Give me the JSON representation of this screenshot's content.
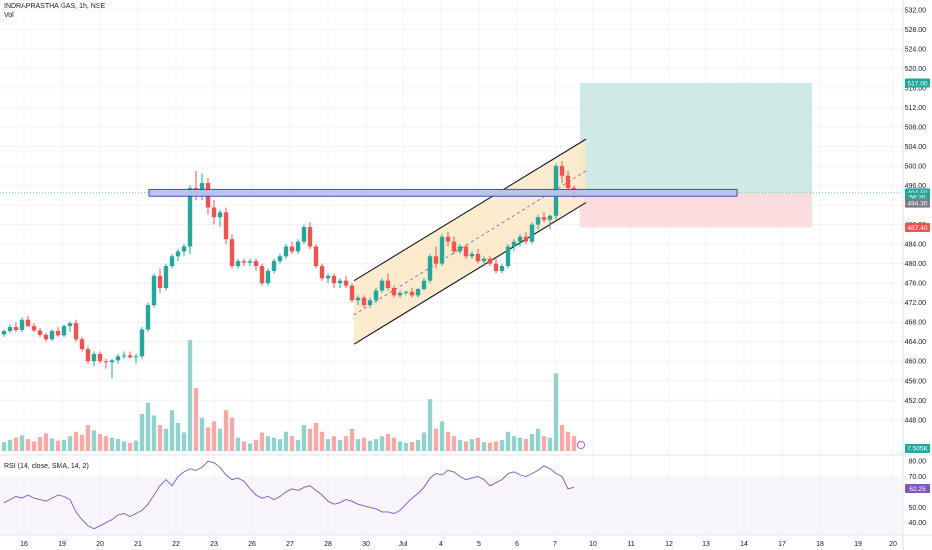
{
  "header": {
    "symbol": "INDRAPRASTHA GAS, 1h, NSE",
    "volume_label": "Vol"
  },
  "rsi_header": {
    "label": "RSI (14, close, SMA, 14, 2)"
  },
  "colors": {
    "up": "#26a69a",
    "down": "#ef5350",
    "vol_up": "#92d2cc",
    "vol_down": "#f7a9a7",
    "rsi_line": "#7e57c2",
    "channel_fill": "#fde8c6",
    "zone_fill": "#b7c4ee",
    "zone_stroke": "#3949ab",
    "target_fill": "#cdeae6",
    "stop_fill": "#fcdcdc",
    "grid": "#f0f3fa"
  },
  "chart_data": {
    "type": "candlestick",
    "y_axis": {
      "range": [
        441,
        534
      ],
      "ticks": [
        532,
        528,
        524,
        520,
        516,
        512,
        508,
        504,
        500,
        496,
        492,
        488,
        484,
        480,
        476,
        472,
        468,
        464,
        460,
        456,
        452,
        448
      ]
    },
    "x_axis": {
      "ticks": [
        "16",
        "19",
        "20",
        "21",
        "22",
        "23",
        "26",
        "27",
        "28",
        "30",
        "Jul",
        "4",
        "5",
        "6",
        "7",
        "10",
        "11",
        "12",
        "13",
        "14",
        "17",
        "18",
        "19",
        "20"
      ]
    },
    "price_tags": [
      {
        "label": "517.00",
        "value": 517.0,
        "color": "#26a69a"
      },
      {
        "label": "494.50",
        "value": 494.5,
        "color": "#26a69a"
      },
      {
        "label": "56:20",
        "value": 493.6,
        "color": "#26a69a"
      },
      {
        "label": "494.30",
        "value": 492.4,
        "color": "#787b86"
      },
      {
        "label": "487.40",
        "value": 487.4,
        "color": "#ef5350"
      }
    ],
    "volume_tag": {
      "label": "7.505K",
      "color": "#26a69a"
    },
    "rsi": {
      "range": [
        32,
        84
      ],
      "ticks": [
        80.0,
        70.0,
        50.0,
        40.0
      ],
      "tick_labels": [
        "80.00",
        "70.00",
        "50.00",
        "40.00"
      ],
      "current_label": "62.25",
      "current_value": 62.25,
      "values": [
        53,
        55,
        57,
        56,
        58,
        56,
        55,
        54,
        56,
        58,
        57,
        55,
        47,
        42,
        38,
        36,
        38,
        40,
        42,
        45,
        46,
        44,
        46,
        48,
        52,
        58,
        64,
        68,
        64,
        70,
        73,
        75,
        74,
        76,
        80,
        79,
        76,
        71,
        68,
        69,
        67,
        62,
        58,
        56,
        57,
        55,
        57,
        60,
        62,
        61,
        63,
        64,
        61,
        58,
        54,
        52,
        53,
        55,
        54,
        52,
        51,
        50,
        49,
        47,
        47,
        46,
        48,
        52,
        56,
        59,
        63,
        69,
        72,
        71,
        74,
        73,
        70,
        68,
        69,
        70,
        68,
        64,
        66,
        68,
        72,
        73,
        71,
        70,
        72,
        74,
        77,
        75,
        72,
        70,
        62,
        63
      ]
    },
    "candles": [
      [
        465.5,
        466.5,
        465,
        466.2,
        1.2
      ],
      [
        466.2,
        467.5,
        465.8,
        467,
        1.5
      ],
      [
        467,
        468,
        466,
        466.4,
        1.8
      ],
      [
        466.4,
        469,
        466,
        468.5,
        2.1
      ],
      [
        468.5,
        469.3,
        467,
        467.2,
        1.6
      ],
      [
        467.2,
        467.8,
        466,
        466.3,
        1.3
      ],
      [
        466.3,
        466.8,
        465,
        465.4,
        1.9
      ],
      [
        465.4,
        465.8,
        464,
        464.5,
        2.4
      ],
      [
        464.5,
        466.5,
        464.2,
        466.2,
        1.7
      ],
      [
        466.2,
        467,
        465,
        465.3,
        1.4
      ],
      [
        465.3,
        467.5,
        465,
        467.2,
        1.5
      ],
      [
        467.2,
        468.2,
        466,
        467.8,
        2.0
      ],
      [
        467.8,
        468.5,
        464,
        464.5,
        2.6
      ],
      [
        464.5,
        465,
        462,
        462.5,
        2.2
      ],
      [
        462.5,
        463,
        459.5,
        460,
        3.5
      ],
      [
        460,
        462,
        459,
        461.5,
        2.8
      ],
      [
        461.5,
        462,
        459.5,
        460,
        2.3
      ],
      [
        460,
        460.5,
        458.5,
        459.8,
        2.0
      ],
      [
        459.8,
        460.5,
        456.5,
        460.2,
        1.8
      ],
      [
        460.2,
        461.5,
        459.5,
        461,
        1.6
      ],
      [
        461,
        462,
        460.5,
        461.2,
        1.3
      ],
      [
        461.2,
        462,
        460.5,
        460.8,
        1.1
      ],
      [
        460.8,
        461.5,
        459.5,
        461,
        1.4
      ],
      [
        461,
        467,
        460.5,
        466.5,
        5.0
      ],
      [
        466.5,
        472,
        466,
        471.5,
        6.5
      ],
      [
        471.5,
        478,
        471,
        477.5,
        4.8
      ],
      [
        477.5,
        479,
        474,
        475,
        3.5
      ],
      [
        475,
        480,
        474.5,
        479.5,
        3.0
      ],
      [
        479.5,
        482,
        479,
        481.5,
        5.5
      ],
      [
        481.5,
        483,
        480.5,
        482.5,
        3.8
      ],
      [
        482.5,
        484,
        481.5,
        483.5,
        2.5
      ],
      [
        483.5,
        496,
        482,
        495.5,
        15.0
      ],
      [
        495.5,
        499,
        493,
        494,
        8.5
      ],
      [
        494,
        498.5,
        493,
        496.5,
        4.5
      ],
      [
        496.5,
        497.5,
        490,
        491.5,
        3.2
      ],
      [
        491.5,
        493,
        488,
        489.5,
        4.0
      ],
      [
        489.5,
        491,
        487.5,
        490.5,
        3.0
      ],
      [
        490.5,
        491.5,
        484,
        485,
        5.5
      ],
      [
        485,
        486,
        479,
        479.5,
        4.5
      ],
      [
        479.5,
        481,
        479,
        480.5,
        1.8
      ],
      [
        480.5,
        481,
        479.5,
        480.2,
        1.3
      ],
      [
        480.2,
        481,
        479.5,
        480.5,
        1.0
      ],
      [
        480.5,
        481,
        478.5,
        479.5,
        1.5
      ],
      [
        479.5,
        480,
        475.5,
        476,
        2.5
      ],
      [
        476,
        479,
        475.5,
        478.5,
        2.0
      ],
      [
        478.5,
        481,
        478,
        480.5,
        1.8
      ],
      [
        480.5,
        482,
        480,
        481.5,
        1.6
      ],
      [
        481.5,
        484,
        481,
        483.5,
        2.6
      ],
      [
        483.5,
        484.5,
        482,
        482.5,
        2.0
      ],
      [
        482.5,
        485,
        482,
        484.5,
        1.5
      ],
      [
        484.5,
        488,
        484,
        487.5,
        3.5
      ],
      [
        487.5,
        488.5,
        483,
        483.5,
        3.0
      ],
      [
        483.5,
        484,
        479,
        479.5,
        3.8
      ],
      [
        479.5,
        480,
        476.5,
        477,
        2.6
      ],
      [
        477,
        478,
        476,
        477.5,
        1.6
      ],
      [
        477.5,
        478,
        475,
        476,
        2.0
      ],
      [
        476,
        477,
        475,
        476.5,
        1.5
      ],
      [
        476.5,
        477.5,
        475,
        475.5,
        2.0
      ],
      [
        475.5,
        476,
        472,
        472.5,
        3.0
      ],
      [
        472.5,
        473.5,
        471.5,
        473,
        1.6
      ],
      [
        473,
        473.5,
        471,
        471.5,
        1.8
      ],
      [
        471.5,
        473,
        471,
        472.5,
        1.4
      ],
      [
        472.5,
        475,
        472,
        474.5,
        1.6
      ],
      [
        474.5,
        477,
        474,
        476.5,
        2.0
      ],
      [
        476.5,
        478,
        474.5,
        475,
        2.3
      ],
      [
        475,
        475.5,
        473,
        473.5,
        1.8
      ],
      [
        473.5,
        474.5,
        473,
        474,
        1.3
      ],
      [
        474,
        474.5,
        473.5,
        474.2,
        1.1
      ],
      [
        474.2,
        475,
        473,
        473.5,
        1.2
      ],
      [
        473.5,
        475,
        473,
        474.8,
        1.5
      ],
      [
        474.8,
        477,
        474.5,
        476.5,
        2.5
      ],
      [
        476.5,
        482,
        476,
        481.5,
        7.0
      ],
      [
        481.5,
        483.5,
        479,
        480,
        3.0
      ],
      [
        480,
        486,
        479.5,
        485.5,
        4.0
      ],
      [
        485.5,
        486.5,
        483.5,
        484.5,
        2.6
      ],
      [
        484.5,
        485.5,
        482,
        482.5,
        2.0
      ],
      [
        482.5,
        484,
        482,
        483.5,
        1.5
      ],
      [
        483.5,
        484,
        481,
        481.5,
        1.3
      ],
      [
        481.5,
        482.5,
        481,
        482,
        1.6
      ],
      [
        482,
        483,
        480,
        480.5,
        1.8
      ],
      [
        480.5,
        481.5,
        479.5,
        481,
        1.2
      ],
      [
        481,
        481.5,
        479.5,
        480,
        1.1
      ],
      [
        480,
        481,
        478,
        478.5,
        1.3
      ],
      [
        478.5,
        480,
        478,
        479.5,
        1.5
      ],
      [
        479.5,
        484,
        479,
        483.5,
        2.6
      ],
      [
        483.5,
        485,
        482.5,
        484.5,
        2.0
      ],
      [
        484.5,
        486,
        483.5,
        485.5,
        1.8
      ],
      [
        485.5,
        486.5,
        484,
        484.5,
        1.6
      ],
      [
        484.5,
        488.5,
        484,
        488,
        2.3
      ],
      [
        488,
        490,
        487,
        489.5,
        3.0
      ],
      [
        489.5,
        490.5,
        488.5,
        489,
        2.0
      ],
      [
        489,
        490,
        487,
        489.8,
        1.8
      ],
      [
        489.8,
        500.5,
        489,
        500,
        10.5
      ],
      [
        500,
        501,
        496.5,
        498,
        3.5
      ],
      [
        498,
        499,
        494.5,
        495.5,
        2.6
      ],
      [
        495.5,
        496,
        493.5,
        494.5,
        2.0
      ]
    ],
    "annotations": {
      "resistance_zone": {
        "low": 493.8,
        "high": 495.2,
        "label": ""
      },
      "channel": {
        "upper": [
          [
            476.5,
            505.5
          ]
        ],
        "lower": [
          [
            463.5,
            492.5
          ]
        ],
        "midline": [
          [
            469.5,
            499.0
          ]
        ]
      },
      "long_position": {
        "entry": 494.5,
        "target": 517.0,
        "stop": 487.4
      }
    }
  }
}
